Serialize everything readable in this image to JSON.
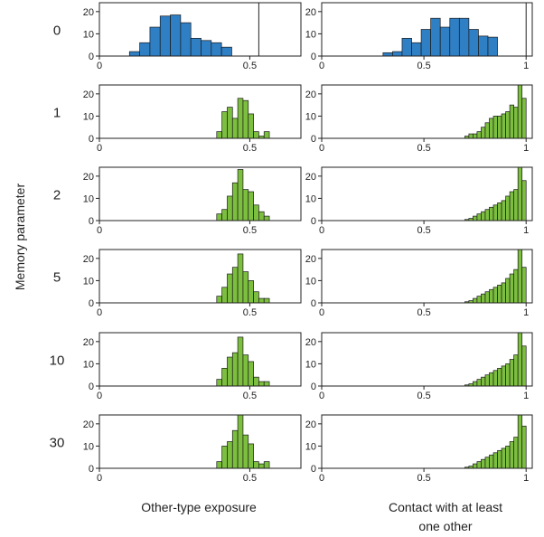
{
  "ylabel": "Memory parameter",
  "column_titles": [
    "Other-type exposure",
    "Contact with at least one other"
  ],
  "colors": {
    "reference": "#2f7fc4",
    "memory": "#7cbf3f",
    "edge": "#1a1a1a"
  },
  "chart_data": [
    {
      "type": "bar",
      "row_label": "0",
      "xlabel": "Other-type exposure",
      "xticks": [
        "0",
        "0.5"
      ],
      "xlim": [
        0,
        0.67
      ],
      "ylim": [
        0,
        24
      ],
      "yticks": [
        0,
        10,
        20
      ],
      "bin_width": 0.034,
      "bin_starts": [
        0.1,
        0.134,
        0.168,
        0.202,
        0.236,
        0.27,
        0.304,
        0.338,
        0.372,
        0.406
      ],
      "counts": [
        2,
        6,
        13,
        18,
        18.5,
        15,
        8,
        7,
        6,
        4
      ],
      "reference_line": 0.53,
      "color": "#2f7fc4"
    },
    {
      "type": "bar",
      "row_label": "0",
      "xlabel": "Contact with at least one other",
      "xticks": [
        "0",
        "0.5",
        "1"
      ],
      "xlim": [
        0,
        1.03
      ],
      "ylim": [
        0,
        24
      ],
      "yticks": [
        0,
        10,
        20
      ],
      "bin_width": 0.0467,
      "bin_starts": [
        0.3,
        0.3467,
        0.3933,
        0.44,
        0.4867,
        0.5333,
        0.58,
        0.6267,
        0.6733,
        0.72,
        0.7667,
        0.8133
      ],
      "counts": [
        1.5,
        2,
        8,
        6,
        12,
        17,
        13,
        17,
        17,
        12,
        9,
        8.5
      ],
      "reference_line": 1.0,
      "color": "#2f7fc4"
    },
    {
      "type": "bar",
      "row_label": "1",
      "xlabel": "Other-type exposure",
      "xticks": [
        "0",
        "0.5"
      ],
      "xlim": [
        0,
        0.67
      ],
      "ylim": [
        0,
        24
      ],
      "yticks": [
        0,
        10,
        20
      ],
      "bin_width": 0.0175,
      "bin_starts": [
        0.39,
        0.4075,
        0.425,
        0.4425,
        0.46,
        0.4775,
        0.495,
        0.5125,
        0.53,
        0.5475
      ],
      "counts": [
        3,
        12,
        14,
        9,
        18,
        17,
        11,
        3,
        1,
        3
      ],
      "color": "#7cbf3f"
    },
    {
      "type": "bar",
      "row_label": "1",
      "xlabel": "Contact with at least one other",
      "xticks": [
        "0",
        "0.5",
        "1"
      ],
      "xlim": [
        0,
        1.03
      ],
      "ylim": [
        0,
        24
      ],
      "yticks": [
        0,
        10,
        20
      ],
      "bin_width": 0.02,
      "bin_starts": [
        0.7,
        0.72,
        0.74,
        0.76,
        0.78,
        0.8,
        0.82,
        0.84,
        0.86,
        0.88,
        0.9,
        0.92,
        0.94,
        0.96,
        0.98
      ],
      "counts": [
        1,
        2,
        2,
        3,
        5,
        7,
        9,
        10,
        10,
        11,
        12,
        15,
        14,
        25,
        18
      ],
      "color": "#7cbf3f"
    },
    {
      "type": "bar",
      "row_label": "2",
      "xlabel": "Other-type exposure",
      "xticks": [
        "0",
        "0.5"
      ],
      "xlim": [
        0,
        0.67
      ],
      "ylim": [
        0,
        24
      ],
      "yticks": [
        0,
        10,
        20
      ],
      "bin_width": 0.0175,
      "bin_starts": [
        0.39,
        0.4075,
        0.425,
        0.4425,
        0.46,
        0.4775,
        0.495,
        0.5125,
        0.53,
        0.5475
      ],
      "counts": [
        3,
        5,
        11,
        17,
        23,
        14,
        13,
        7,
        4,
        2
      ],
      "color": "#7cbf3f"
    },
    {
      "type": "bar",
      "row_label": "2",
      "xlabel": "Contact with at least one other",
      "xticks": [
        "0",
        "0.5",
        "1"
      ],
      "xlim": [
        0,
        1.03
      ],
      "ylim": [
        0,
        24
      ],
      "yticks": [
        0,
        10,
        20
      ],
      "bin_width": 0.02,
      "bin_starts": [
        0.7,
        0.72,
        0.74,
        0.76,
        0.78,
        0.8,
        0.82,
        0.84,
        0.86,
        0.88,
        0.9,
        0.92,
        0.94,
        0.96,
        0.98
      ],
      "counts": [
        0.5,
        1,
        2,
        3,
        4,
        5,
        6,
        7,
        8,
        9,
        11,
        13,
        14,
        27,
        18
      ],
      "color": "#7cbf3f"
    },
    {
      "type": "bar",
      "row_label": "5",
      "xlabel": "Other-type exposure",
      "xticks": [
        "0",
        "0.5"
      ],
      "xlim": [
        0,
        0.67
      ],
      "ylim": [
        0,
        24
      ],
      "yticks": [
        0,
        10,
        20
      ],
      "bin_width": 0.0175,
      "bin_starts": [
        0.39,
        0.4075,
        0.425,
        0.4425,
        0.46,
        0.4775,
        0.495,
        0.5125,
        0.53,
        0.5475
      ],
      "counts": [
        3,
        7,
        13,
        16,
        22,
        14,
        10,
        5,
        2,
        2
      ],
      "color": "#7cbf3f"
    },
    {
      "type": "bar",
      "row_label": "5",
      "xlabel": "Contact with at least one other",
      "xticks": [
        "0",
        "0.5",
        "1"
      ],
      "xlim": [
        0,
        1.03
      ],
      "ylim": [
        0,
        24
      ],
      "yticks": [
        0,
        10,
        20
      ],
      "bin_width": 0.02,
      "bin_starts": [
        0.7,
        0.72,
        0.74,
        0.76,
        0.78,
        0.8,
        0.82,
        0.84,
        0.86,
        0.88,
        0.9,
        0.92,
        0.94,
        0.96,
        0.98
      ],
      "counts": [
        0.5,
        1,
        2,
        3,
        4,
        5,
        6,
        7,
        8,
        9,
        11,
        13,
        15,
        27,
        16
      ],
      "color": "#7cbf3f"
    },
    {
      "type": "bar",
      "row_label": "10",
      "xlabel": "Other-type exposure",
      "xticks": [
        "0",
        "0.5"
      ],
      "xlim": [
        0,
        0.67
      ],
      "ylim": [
        0,
        24
      ],
      "yticks": [
        0,
        10,
        20
      ],
      "bin_width": 0.0175,
      "bin_starts": [
        0.39,
        0.4075,
        0.425,
        0.4425,
        0.46,
        0.4775,
        0.495,
        0.5125,
        0.53,
        0.5475
      ],
      "counts": [
        3,
        8,
        13,
        15,
        22,
        14,
        11,
        4,
        2,
        2
      ],
      "color": "#7cbf3f"
    },
    {
      "type": "bar",
      "row_label": "10",
      "xlabel": "Contact with at least one other",
      "xticks": [
        "0",
        "0.5",
        "1"
      ],
      "xlim": [
        0,
        1.03
      ],
      "ylim": [
        0,
        24
      ],
      "yticks": [
        0,
        10,
        20
      ],
      "bin_width": 0.02,
      "bin_starts": [
        0.7,
        0.72,
        0.74,
        0.76,
        0.78,
        0.8,
        0.82,
        0.84,
        0.86,
        0.88,
        0.9,
        0.92,
        0.94,
        0.96,
        0.98
      ],
      "counts": [
        0.5,
        1,
        2,
        3,
        4,
        5,
        6,
        7,
        8,
        9,
        10,
        12,
        14,
        26,
        18
      ],
      "color": "#7cbf3f"
    },
    {
      "type": "bar",
      "row_label": "30",
      "xlabel": "Other-type exposure",
      "xticks": [
        "0",
        "0.5"
      ],
      "xlim": [
        0,
        0.67
      ],
      "ylim": [
        0,
        24
      ],
      "yticks": [
        0,
        10,
        20
      ],
      "bin_width": 0.0175,
      "bin_starts": [
        0.39,
        0.4075,
        0.425,
        0.4425,
        0.46,
        0.4775,
        0.495,
        0.5125,
        0.53,
        0.5475
      ],
      "counts": [
        3,
        10,
        12,
        17,
        24,
        15,
        11,
        3,
        2,
        3
      ],
      "color": "#7cbf3f"
    },
    {
      "type": "bar",
      "row_label": "30",
      "xlabel": "Contact with at least one other",
      "xticks": [
        "0",
        "0.5",
        "1"
      ],
      "xlim": [
        0,
        1.03
      ],
      "ylim": [
        0,
        24
      ],
      "yticks": [
        0,
        10,
        20
      ],
      "bin_width": 0.02,
      "bin_starts": [
        0.7,
        0.72,
        0.74,
        0.76,
        0.78,
        0.8,
        0.82,
        0.84,
        0.86,
        0.88,
        0.9,
        0.92,
        0.94,
        0.96,
        0.98
      ],
      "counts": [
        0.5,
        1,
        2,
        3,
        4,
        5,
        6,
        7,
        8,
        9,
        10,
        12,
        14,
        25,
        19
      ],
      "color": "#7cbf3f"
    }
  ]
}
